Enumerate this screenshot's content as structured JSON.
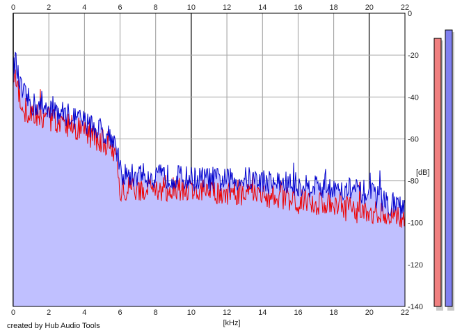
{
  "footer": "created by Hub Audio Tools",
  "chart_data": {
    "type": "line",
    "title": "",
    "xlabel": "[kHz]",
    "ylabel": "[dB]",
    "xlim": [
      0,
      22
    ],
    "ylim": [
      -140,
      0
    ],
    "x_ticks": [
      0,
      2,
      4,
      6,
      8,
      10,
      12,
      14,
      16,
      18,
      20,
      22
    ],
    "y_ticks": [
      0,
      -20,
      -40,
      -60,
      -80,
      -100,
      -120,
      -140
    ],
    "grid": true,
    "fill_color": "#c0c0ff",
    "series": [
      {
        "color": "#0000cc",
        "x": [
          0,
          0.1,
          0.3,
          0.5,
          1,
          1.5,
          2,
          2.5,
          3,
          3.5,
          4,
          4.5,
          5,
          5.5,
          5.8,
          6,
          6.5,
          7,
          8,
          9,
          10,
          11,
          12,
          13,
          14,
          15,
          16,
          17,
          18,
          19,
          20,
          20.5,
          21,
          21.5,
          22
        ],
        "values": [
          -30,
          -21,
          -32,
          -38,
          -43,
          -45,
          -44,
          -47,
          -48,
          -50,
          -52,
          -54,
          -56,
          -58,
          -64,
          -76,
          -78,
          -77,
          -78,
          -78,
          -79,
          -79,
          -80,
          -79,
          -80,
          -81,
          -82,
          -82,
          -83,
          -84,
          -86,
          -88,
          -90,
          -92,
          -94
        ]
      },
      {
        "color": "#ee0000",
        "x": [
          0,
          0.1,
          0.3,
          0.5,
          1,
          1.5,
          2,
          2.5,
          3,
          3.5,
          4,
          4.5,
          5,
          5.5,
          5.8,
          6,
          6.5,
          7,
          8,
          9,
          10,
          11,
          12,
          13,
          14,
          15,
          16,
          17,
          18,
          19,
          20,
          20.5,
          21,
          21.5,
          22
        ],
        "values": [
          -32,
          -26,
          -38,
          -45,
          -48,
          -50,
          -50,
          -52,
          -53,
          -55,
          -57,
          -59,
          -61,
          -63,
          -68,
          -84,
          -84,
          -84,
          -84,
          -84,
          -85,
          -85,
          -86,
          -86,
          -87,
          -88,
          -90,
          -91,
          -92,
          -94,
          -95,
          -95,
          -96,
          -97,
          -98
        ]
      }
    ],
    "level_meters": [
      {
        "color": "#f08080",
        "value": -12
      },
      {
        "color": "#8080f0",
        "value": -8
      }
    ]
  }
}
